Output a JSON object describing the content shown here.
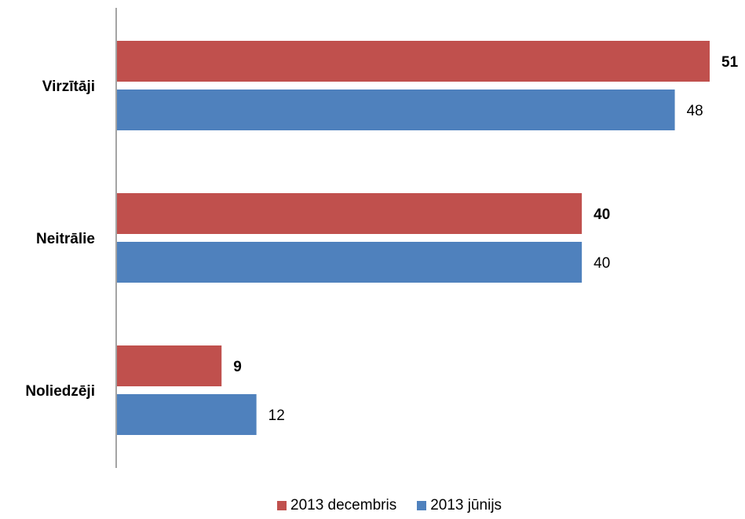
{
  "chart_data": {
    "type": "bar",
    "orientation": "horizontal",
    "categories": [
      "Virzītāji",
      "Neitrālie",
      "Noliedzēji"
    ],
    "series": [
      {
        "name": "2013 decembris",
        "values": [
          51,
          40,
          9
        ],
        "color": "#C0504D",
        "label_bold": true
      },
      {
        "name": "2013 jūnijs",
        "values": [
          48,
          40,
          12
        ],
        "color": "#4F81BD",
        "label_bold": false
      }
    ],
    "xlim": [
      0,
      51
    ],
    "grid": false,
    "legend": "bottom"
  }
}
